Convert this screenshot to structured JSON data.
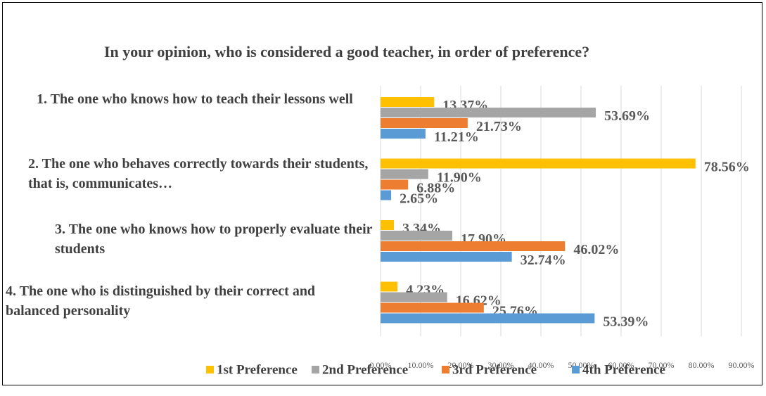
{
  "chart_data": {
    "type": "hbar",
    "title": "In your opinion, who is considered a good teacher, in order of preference?",
    "categories": [
      "1. The one who knows how to teach their lessons well",
      "2. The one who behaves correctly towards their students, that is, communicates…",
      "3. The one who knows how to properly evaluate their students",
      "4. The one who is distinguished by their correct and balanced  personality"
    ],
    "series": [
      {
        "name": "1st Preference",
        "color": "#FFC000",
        "values": [
          13.37,
          78.56,
          3.34,
          4.23
        ],
        "value_labels": [
          "13.37%",
          "78.56%",
          "3.34%",
          "4.23%"
        ]
      },
      {
        "name": "2nd Preference",
        "color": "#A5A5A5",
        "values": [
          53.69,
          11.9,
          17.9,
          16.62
        ],
        "value_labels": [
          "53.69%",
          "11.90%",
          "17.90%",
          "16.62%"
        ]
      },
      {
        "name": "3rd Preference",
        "color": "#ED7D31",
        "values": [
          21.73,
          6.88,
          46.02,
          25.76
        ],
        "value_labels": [
          "21.73%",
          "6.88%",
          "46.02%",
          "25.76%"
        ]
      },
      {
        "name": "4th Preference",
        "color": "#5B9BD5",
        "values": [
          11.21,
          2.65,
          32.74,
          53.39
        ],
        "value_labels": [
          "11.21%",
          "2.65%",
          "32.74%",
          "53.39%"
        ]
      }
    ],
    "xlim": [
      0,
      90
    ],
    "xticks": [
      {
        "value": 0,
        "label": "0.00%"
      },
      {
        "value": 10,
        "label": "10.00%"
      },
      {
        "value": 20,
        "label": "20.00%"
      },
      {
        "value": 30,
        "label": "30.00%"
      },
      {
        "value": 40,
        "label": "40.00%"
      },
      {
        "value": 50,
        "label": "50.00%"
      },
      {
        "value": 60,
        "label": "60.00%"
      },
      {
        "value": 70,
        "label": "70.00%"
      },
      {
        "value": 80,
        "label": "80.00%"
      },
      {
        "value": 90,
        "label": "90.00%"
      }
    ],
    "grid": true,
    "legend": "bottom"
  }
}
